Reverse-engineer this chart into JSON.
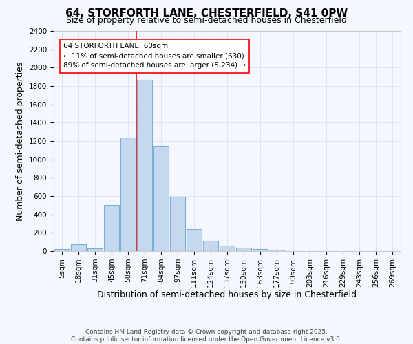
{
  "title1": "64, STORFORTH LANE, CHESTERFIELD, S41 0PW",
  "title2": "Size of property relative to semi-detached houses in Chesterfield",
  "xlabel": "Distribution of semi-detached houses by size in Chesterfield",
  "ylabel": "Number of semi-detached properties",
  "footer": "Contains HM Land Registry data © Crown copyright and database right 2025.\nContains public sector information licensed under the Open Government Licence v3.0.",
  "bar_labels": [
    "5sqm",
    "18sqm",
    "31sqm",
    "45sqm",
    "58sqm",
    "71sqm",
    "84sqm",
    "97sqm",
    "111sqm",
    "124sqm",
    "137sqm",
    "150sqm",
    "163sqm",
    "177sqm",
    "190sqm",
    "203sqm",
    "216sqm",
    "229sqm",
    "243sqm",
    "256sqm",
    "269sqm"
  ],
  "bar_values": [
    20,
    75,
    30,
    500,
    1240,
    1870,
    1145,
    590,
    243,
    110,
    60,
    40,
    23,
    15,
    0,
    0,
    0,
    0,
    0,
    0,
    0
  ],
  "bar_color": "#c5d8f0",
  "bar_edge_color": "#7aafd4",
  "ylim": [
    0,
    2400
  ],
  "yticks": [
    0,
    200,
    400,
    600,
    800,
    1000,
    1200,
    1400,
    1600,
    1800,
    2000,
    2200,
    2400
  ],
  "property_label": "64 STORFORTH LANE: 60sqm",
  "pct_smaller": 11,
  "count_smaller": 630,
  "pct_larger": 89,
  "count_larger": "5,234",
  "vline_x": 4.5,
  "bg_color": "#f5f7ff",
  "grid_color": "#dde5f0",
  "title_fontsize": 11,
  "subtitle_fontsize": 9,
  "axis_label_fontsize": 9,
  "tick_fontsize": 7.5,
  "footer_fontsize": 6.5
}
